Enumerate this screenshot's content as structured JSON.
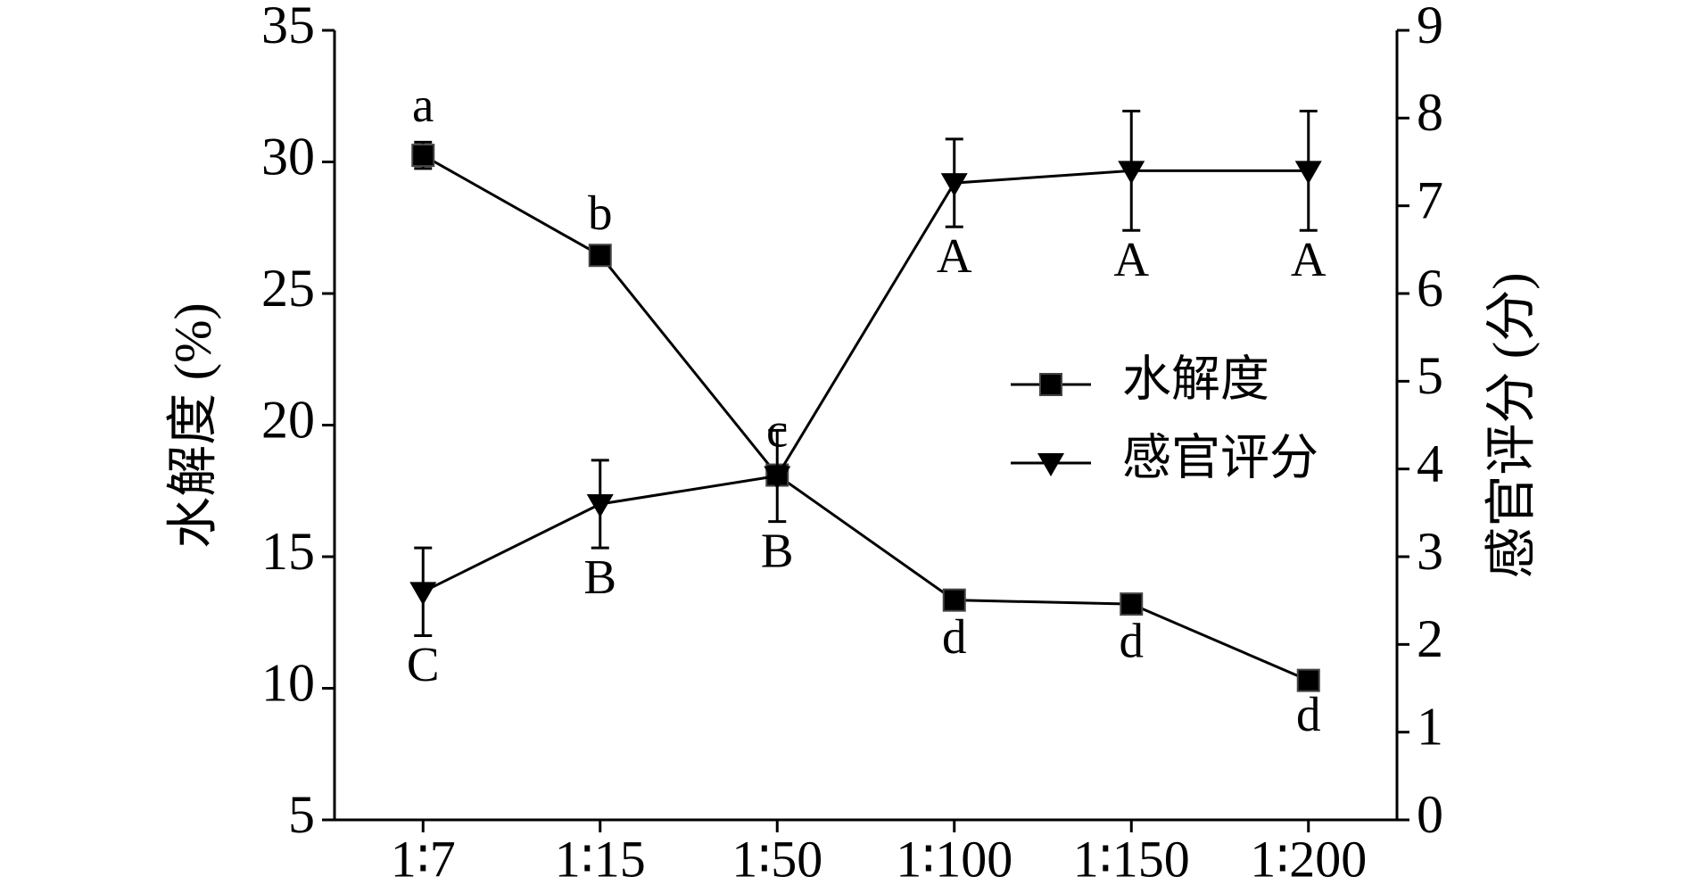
{
  "chart_data": {
    "type": "line",
    "categories": [
      "1∶7",
      "1∶15",
      "1∶50",
      "1∶100",
      "1∶150",
      "1∶200"
    ],
    "y_label": "水解度 (%)",
    "y2_label": "感官评分 (分)",
    "ylim": [
      5,
      35
    ],
    "yticks": [
      5,
      10,
      15,
      20,
      25,
      30,
      35
    ],
    "y2lim": [
      0,
      9
    ],
    "y2ticks": [
      0,
      1,
      2,
      3,
      4,
      5,
      6,
      7,
      8,
      9
    ],
    "legend": "right",
    "series": [
      {
        "name": "水解度",
        "color": "#000000",
        "marker": "square",
        "axis": "y",
        "values": [
          30.25,
          26.45,
          18.1,
          13.35,
          13.2,
          10.3
        ],
        "errors": [
          0.5,
          0.2,
          0.3,
          0.3,
          0.3,
          0.2
        ],
        "labels": [
          "a",
          "b",
          "c",
          "d",
          "d",
          "d"
        ]
      },
      {
        "name": "感官评分",
        "color": "#000000",
        "marker": "triangle-down",
        "axis": "y2",
        "values": [
          2.6,
          3.6,
          3.92,
          7.26,
          7.4,
          7.4
        ],
        "errors": [
          0.5,
          0.5,
          0.52,
          0.5,
          0.68,
          0.68
        ],
        "labels": [
          "C",
          "B",
          "B",
          "A",
          "A",
          "A"
        ]
      }
    ]
  }
}
